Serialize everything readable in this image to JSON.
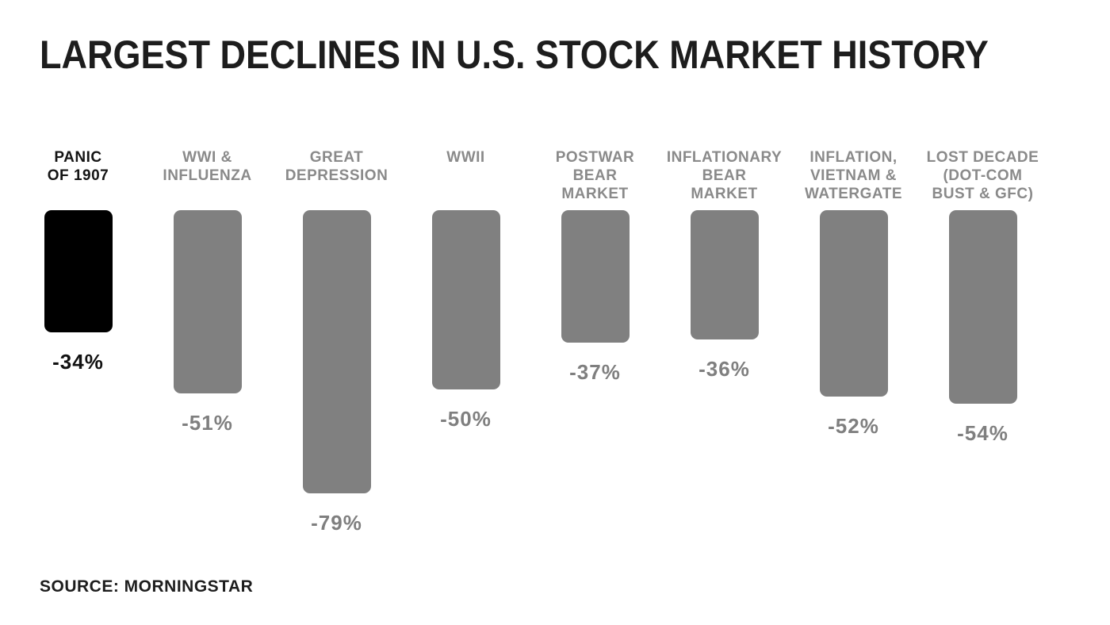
{
  "title": "LARGEST DECLINES IN U.S. STOCK MARKET HISTORY",
  "source": "SOURCE: MORNINGSTAR",
  "colors": {
    "background": "#ffffff",
    "bar": "#808080",
    "highlight_bar": "#000000",
    "category_text": "#8a8a8a",
    "value_text": "#7f7f7f",
    "highlight_text": "#141414",
    "title_text": "#1d1d1d"
  },
  "chart_data": {
    "type": "bar",
    "orientation": "vertical-downward",
    "title": "LARGEST DECLINES IN U.S. STOCK MARKET HISTORY",
    "source": "SOURCE: MORNINGSTAR",
    "categories": [
      "PANIC OF 1907",
      "WWI & INFLUENZA",
      "GREAT DEPRESSION",
      "WWII",
      "POSTWAR BEAR MARKET",
      "INFLATIONARY BEAR MARKET",
      "INFLATION, VIETNAM & WATERGATE",
      "LOST DECADE (DOT-COM BUST & GFC)"
    ],
    "values": [
      -34,
      -51,
      -79,
      -50,
      -37,
      -36,
      -52,
      -54
    ],
    "value_labels": [
      "-34%",
      "-51%",
      "-79%",
      "-50%",
      "-37%",
      "-36%",
      "-52%",
      "-54%"
    ],
    "ylim": [
      -80,
      0
    ],
    "grid": false,
    "legend": false,
    "highlighted_index": 0,
    "bar_color": "#808080",
    "highlight_color": "#000000"
  },
  "bars": [
    {
      "label": "PANIC\nOF 1907",
      "value_label": "-34%"
    },
    {
      "label": "WWI &\nINFLUENZA",
      "value_label": "-51%"
    },
    {
      "label": "GREAT\nDEPRESSION",
      "value_label": "-79%"
    },
    {
      "label": "WWII",
      "value_label": "-50%"
    },
    {
      "label": "POSTWAR\nBEAR\nMARKET",
      "value_label": "-37%"
    },
    {
      "label": "INFLATIONARY\nBEAR\nMARKET",
      "value_label": "-36%"
    },
    {
      "label": "INFLATION,\nVIETNAM &\nWATERGATE",
      "value_label": "-52%"
    },
    {
      "label": "LOST DECADE\n(DOT-COM\nBUST & GFC)",
      "value_label": "-54%"
    }
  ]
}
